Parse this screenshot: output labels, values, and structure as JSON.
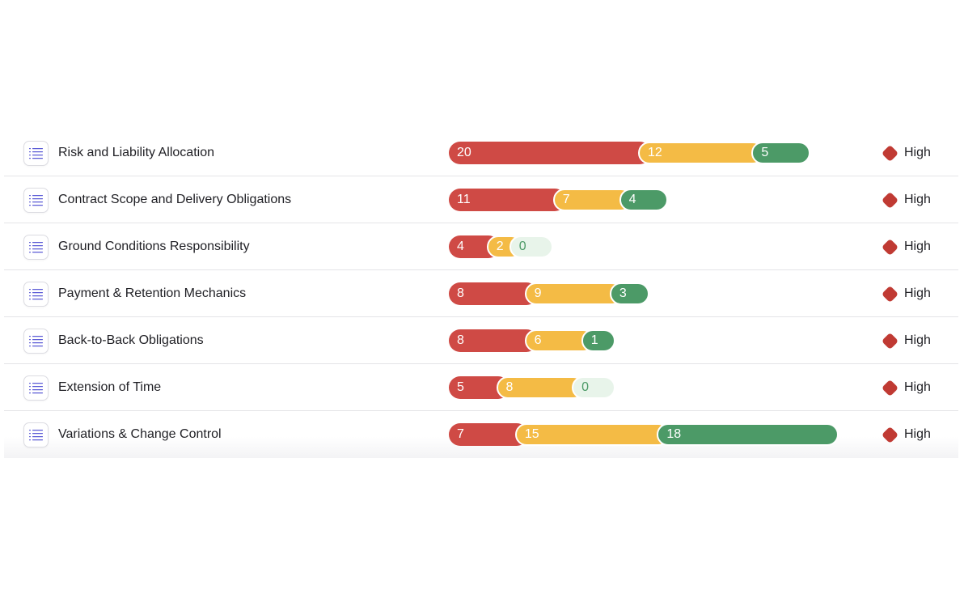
{
  "colors": {
    "high_risk": "#cf4a45",
    "medium_risk": "#f4bb45",
    "low_risk": "#4c9a67",
    "low_risk_zero_bg": "#e8f4ea",
    "severity_high": "#c03a33"
  },
  "icons": {
    "row_icon": "list-icon",
    "severity_icon": "diamond-icon"
  },
  "rows": [
    {
      "title": "Risk and Liability Allocation",
      "red": "20",
      "yellow": "12",
      "green": "5",
      "severity": "High"
    },
    {
      "title": "Contract Scope and Delivery Obligations",
      "red": "11",
      "yellow": "7",
      "green": "4",
      "severity": "High"
    },
    {
      "title": "Ground Conditions Responsibility",
      "red": "4",
      "yellow": "2",
      "green": "0",
      "severity": "High"
    },
    {
      "title": "Payment & Retention Mechanics",
      "red": "8",
      "yellow": "9",
      "green": "3",
      "severity": "High"
    },
    {
      "title": "Back-to-Back Obligations",
      "red": "8",
      "yellow": "6",
      "green": "1",
      "severity": "High"
    },
    {
      "title": "Extension of Time",
      "red": "5",
      "yellow": "8",
      "green": "0",
      "severity": "High"
    },
    {
      "title": "Variations & Change Control",
      "red": "7",
      "yellow": "15",
      "green": "18",
      "severity": "High"
    }
  ]
}
